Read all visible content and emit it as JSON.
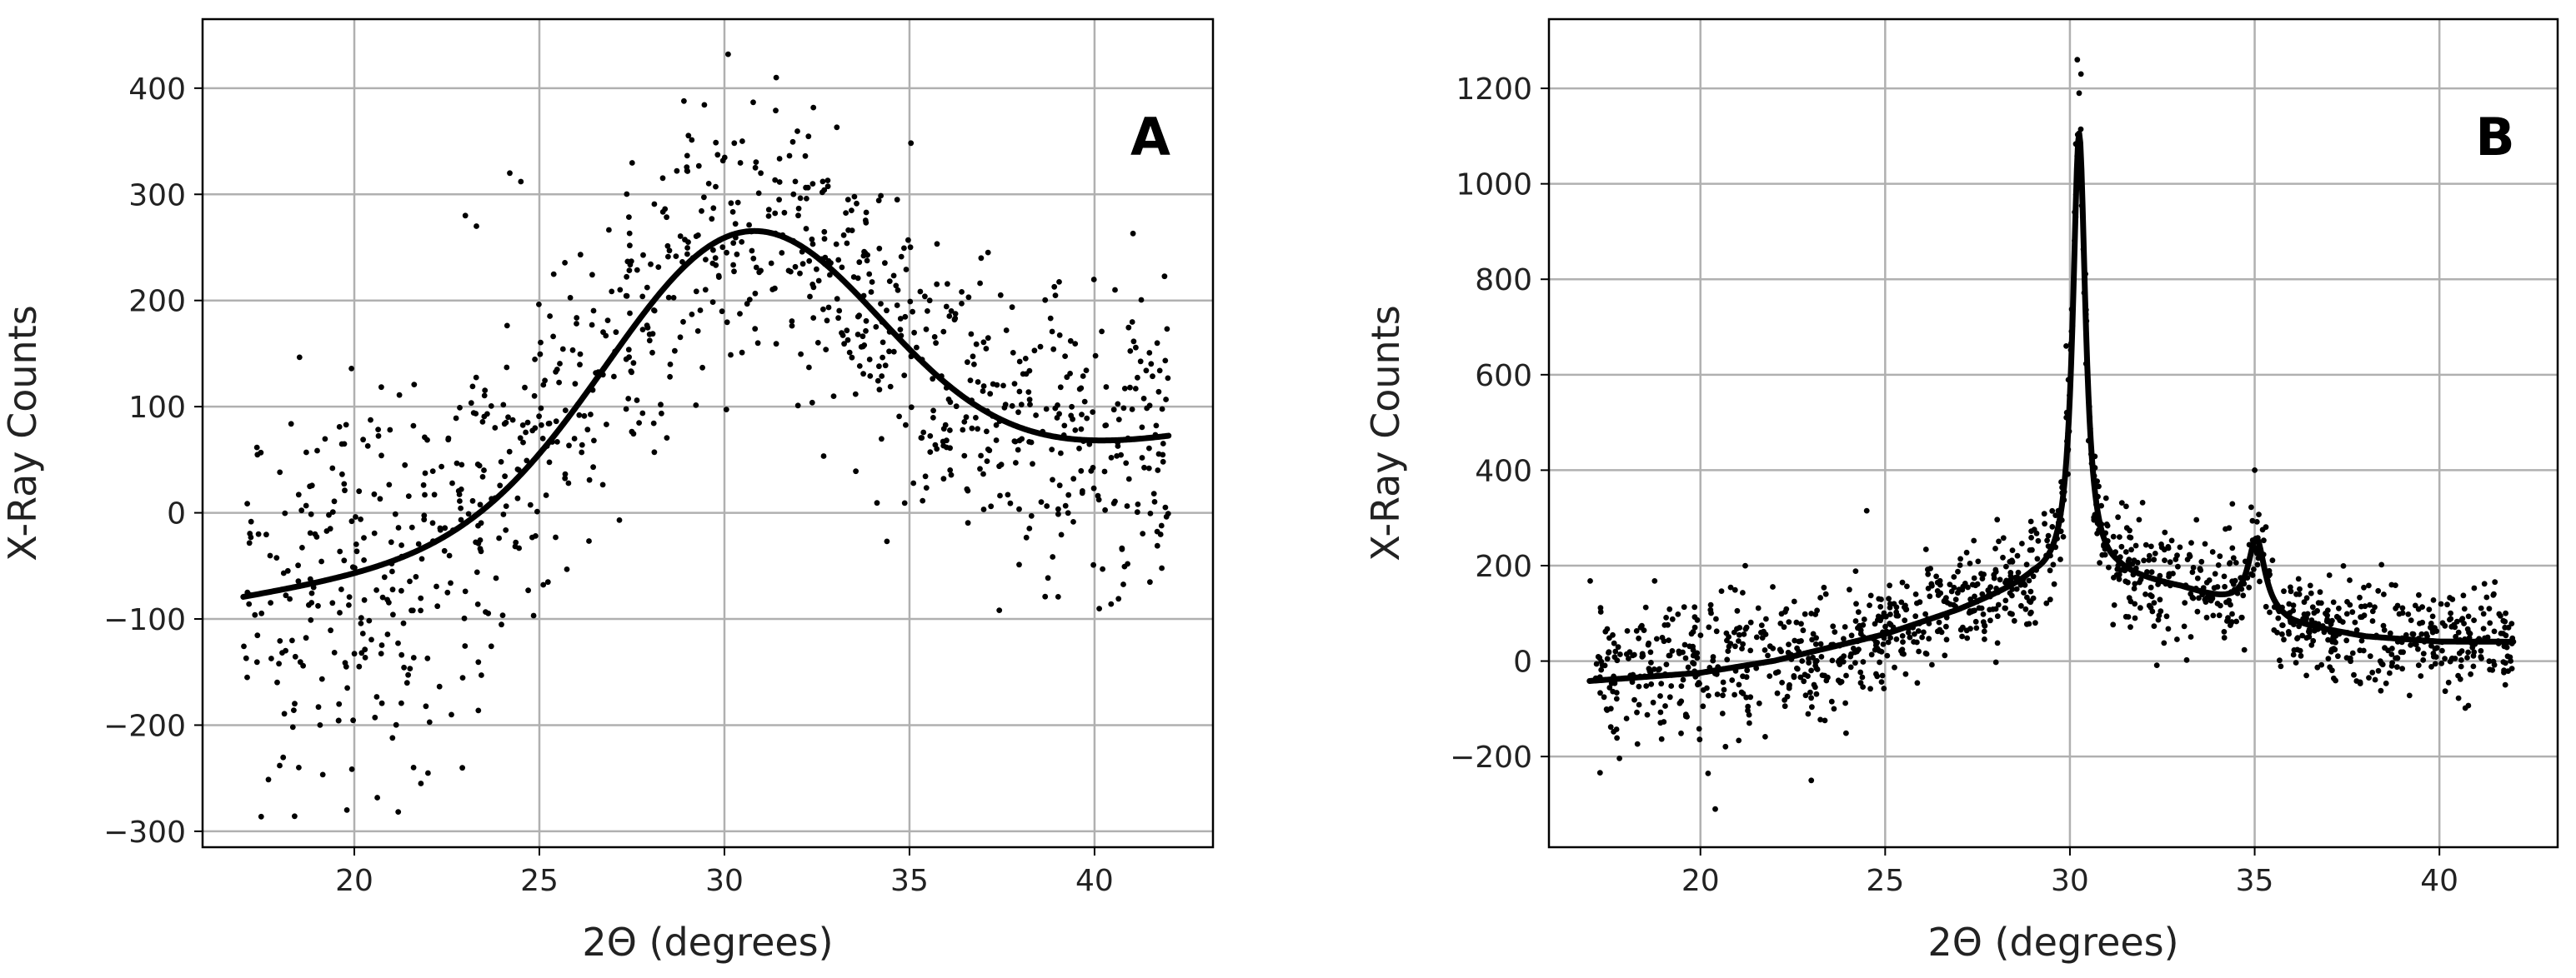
{
  "chart_data": [
    {
      "type": "scatter",
      "panel_label": "A",
      "xlabel": "2Θ (degrees)",
      "ylabel": "X-Ray Counts",
      "xlim": [
        15.9,
        43.2
      ],
      "ylim": [
        -315,
        465
      ],
      "xticks": [
        20,
        25,
        30,
        35,
        40
      ],
      "yticks": [
        -300,
        -200,
        -100,
        0,
        100,
        200,
        300,
        400
      ],
      "ytick_labels": [
        "−300",
        "−200",
        "−100",
        "0",
        "100",
        "200",
        "300",
        "400"
      ],
      "grid": true,
      "series": [
        {
          "kind": "scatter",
          "x_range": [
            17,
            42
          ],
          "n_points": 1000,
          "noise_sd": 70,
          "noise_sd_low_angle": 95,
          "outliers": [
            [
              23.0,
              280
            ],
            [
              23.3,
              270
            ],
            [
              24.2,
              320
            ],
            [
              24.5,
              312
            ],
            [
              21.6,
              -240
            ],
            [
              21.8,
              -255
            ],
            [
              19.8,
              -280
            ],
            [
              18.5,
              -240
            ],
            [
              30.1,
              432
            ],
            [
              31.4,
              410
            ]
          ]
        },
        {
          "kind": "fit",
          "model": "gaussian_plus_linear",
          "baseline_intercept": -79.5,
          "baseline_slope": 6.0,
          "peak_center": 30.5,
          "peak_amplitude": 263.0,
          "peak_sigma": 3.7,
          "x_range": [
            17,
            42
          ]
        }
      ],
      "colors": {
        "points": "#000000",
        "fit": "#000000",
        "grid": "#b0b0b0"
      }
    },
    {
      "type": "scatter",
      "panel_label": "B",
      "xlabel": "2Θ (degrees)",
      "ylabel": "X-Ray Counts",
      "xlim": [
        15.9,
        43.2
      ],
      "ylim": [
        -390,
        1345
      ],
      "xticks": [
        20,
        25,
        30,
        35,
        40
      ],
      "yticks": [
        -200,
        0,
        200,
        400,
        600,
        800,
        1000,
        1200
      ],
      "ytick_labels": [
        "−200",
        "0",
        "200",
        "400",
        "600",
        "800",
        "1000",
        "1200"
      ],
      "grid": true,
      "series": [
        {
          "kind": "scatter",
          "x_range": [
            17,
            42
          ],
          "n_points": 1300,
          "noise_sd": 55,
          "noise_sd_low_angle": 75,
          "outliers": [
            [
              30.2,
              1260
            ],
            [
              30.3,
              1230
            ],
            [
              30.25,
              1190
            ],
            [
              29.9,
              660
            ],
            [
              23.0,
              -250
            ],
            [
              24.5,
              315
            ],
            [
              20.4,
              -310
            ],
            [
              35.0,
              400
            ]
          ]
        },
        {
          "kind": "fit",
          "model": "two_lorentzians_plus_baseline",
          "baseline": [
            [
              17,
              -42
            ],
            [
              20,
              -25
            ],
            [
              22,
              0
            ],
            [
              25,
              55
            ],
            [
              27,
              105
            ],
            [
              29,
              165
            ],
            [
              31.3,
              175
            ],
            [
              33,
              150
            ],
            [
              34.3,
              120
            ],
            [
              36,
              75
            ],
            [
              38,
              50
            ],
            [
              40,
              40
            ],
            [
              42,
              40
            ]
          ],
          "peaks": [
            {
              "center": 30.25,
              "amplitude": 935,
              "hwhm": 0.21
            },
            {
              "center": 35.05,
              "amplitude": 155,
              "hwhm": 0.28
            }
          ],
          "x_range": [
            17,
            42
          ]
        }
      ],
      "colors": {
        "points": "#000000",
        "fit": "#000000",
        "grid": "#b0b0b0"
      }
    }
  ]
}
